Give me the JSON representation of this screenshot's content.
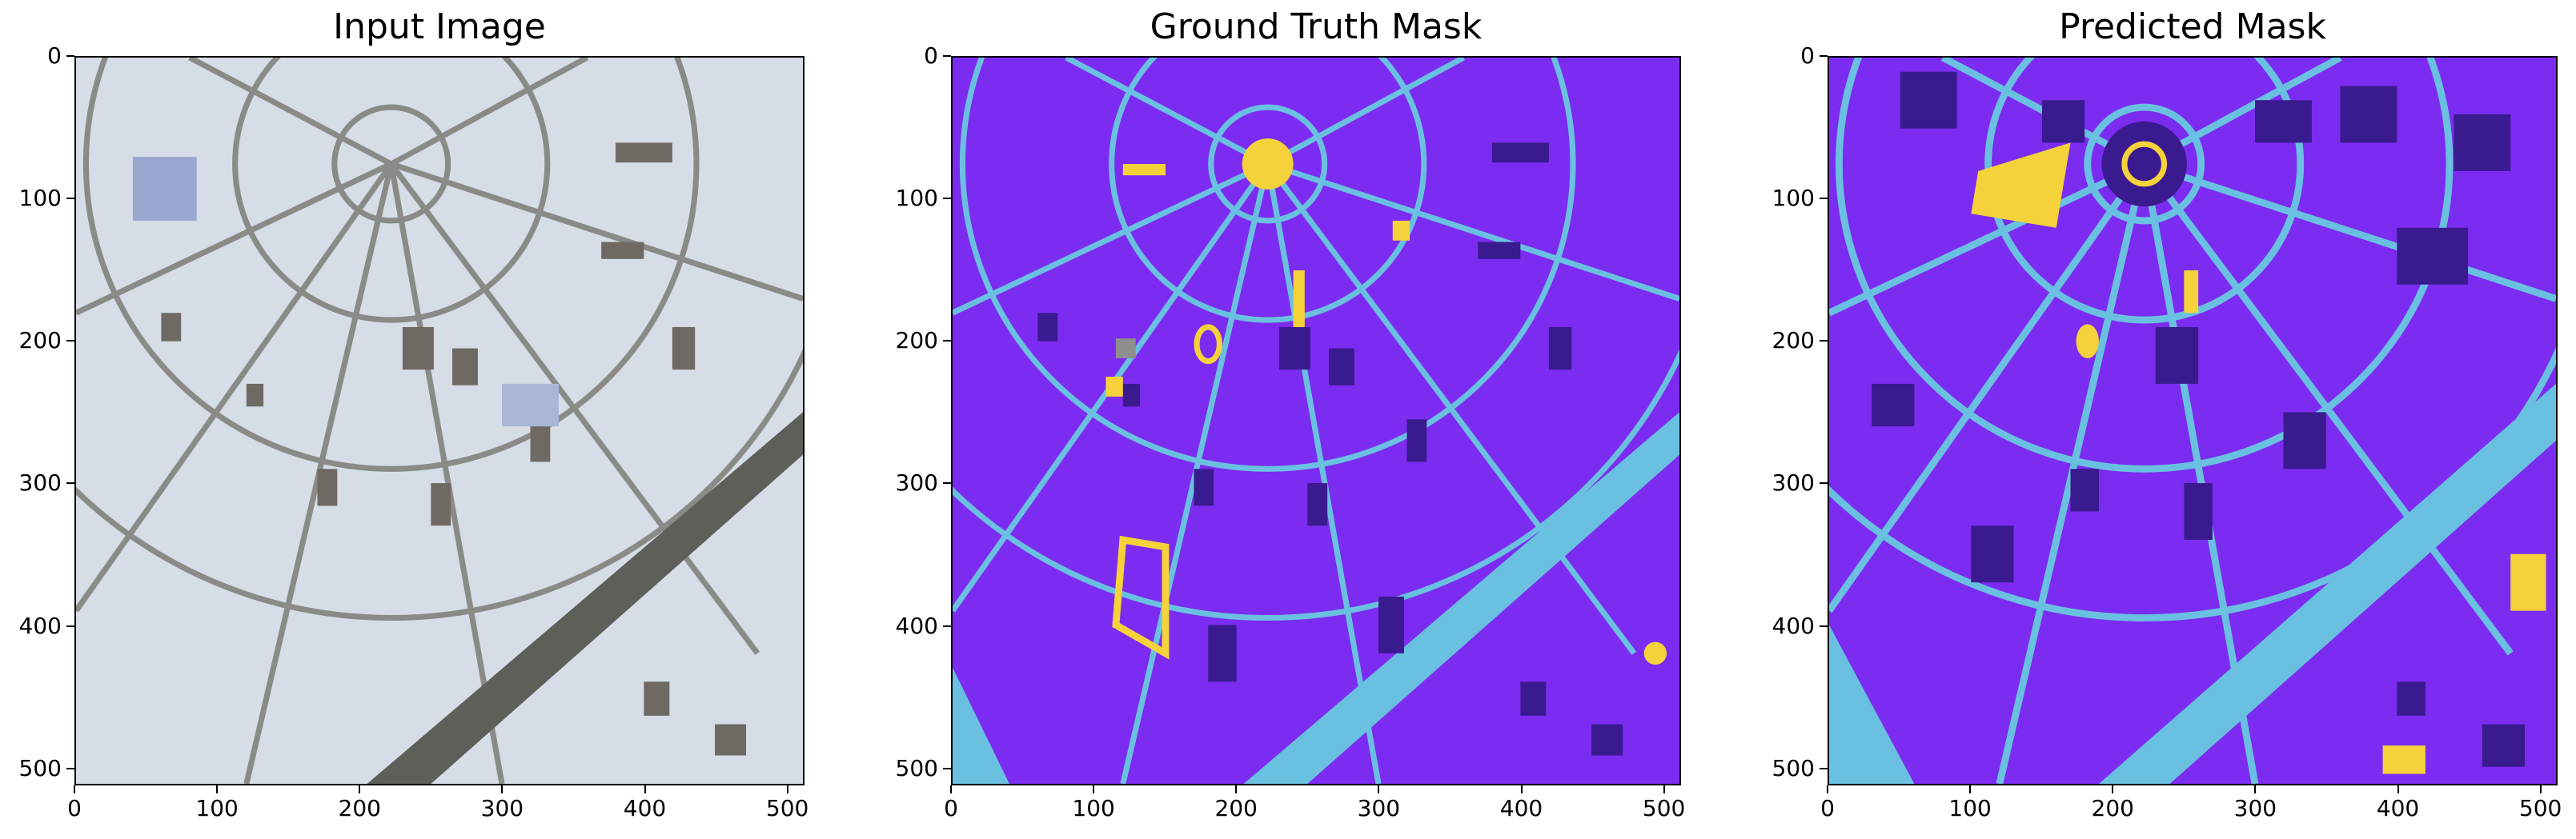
{
  "panels": [
    {
      "title": "Input Image"
    },
    {
      "title": "Ground Truth Mask"
    },
    {
      "title": "Predicted Mask"
    }
  ],
  "axis": {
    "x_ticks": [
      "0",
      "100",
      "200",
      "300",
      "400",
      "500"
    ],
    "y_ticks": [
      "0",
      "100",
      "200",
      "300",
      "400",
      "500"
    ],
    "range": [
      0,
      512
    ]
  },
  "colors": {
    "background_class": "#7b2cf0",
    "road_class": "#6ac0e0",
    "building_class": "#3a1a8f",
    "vegetation_class": "#f5d13a",
    "other_class": "#8f8f8f"
  }
}
